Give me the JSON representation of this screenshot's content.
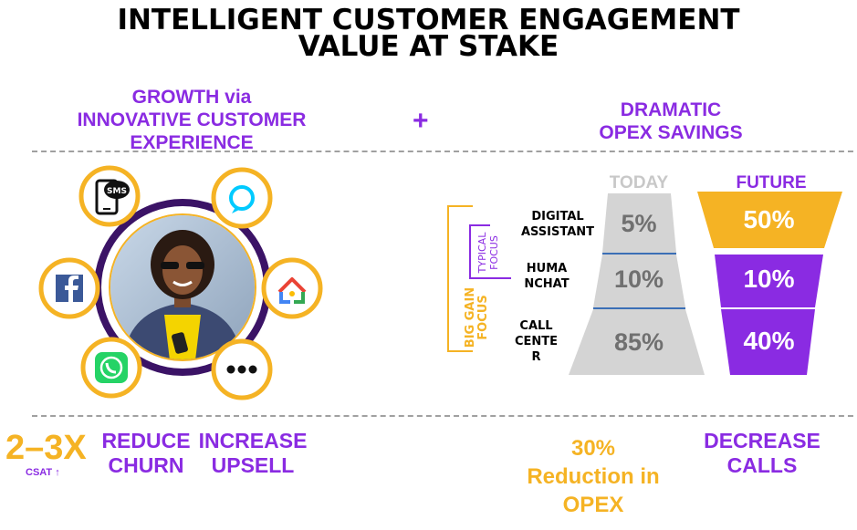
{
  "title": {
    "line1": "INTELLIGENT CUSTOMER ENGAGEMENT",
    "line2": "VALUE AT STAKE"
  },
  "growth": {
    "line1": "GROWTH via",
    "line2": "INNOVATIVE CUSTOMER",
    "line3": "EXPERIENCE"
  },
  "plus_sign": "+",
  "opex": {
    "line1": "DRAMATIC",
    "line2": "OPEX SAVINGS"
  },
  "channels": {
    "sms_label": "SMS",
    "icons": [
      "sms-phone-icon",
      "alexa-icon",
      "facebook-icon",
      "google-home-icon",
      "whatsapp-icon",
      "more-icon"
    ]
  },
  "funnel": {
    "today_header": "TODAY",
    "future_header": "FUTURE",
    "stages": [
      {
        "label_lines": [
          "DIGITAL",
          "ASSISTANT"
        ],
        "today": "5%",
        "future": "50%"
      },
      {
        "label_lines": [
          "HUMA",
          "NCHAT"
        ],
        "today": "10%",
        "future": "10%"
      },
      {
        "label_lines": [
          "CALL",
          "CENTE",
          "R"
        ],
        "today": "85%",
        "future": "40%"
      }
    ],
    "typical_focus": [
      "TYPICAL",
      "FOCUS"
    ],
    "big_gain_focus": [
      "BIG GAIN",
      "FOCUS"
    ]
  },
  "benefits": {
    "csat_value": "2–3X",
    "csat_label": "CSAT",
    "csat_arrow": "↑",
    "churn": [
      "REDUCE",
      "CHURN"
    ],
    "upsell": [
      "INCREASE",
      "UPSELL"
    ],
    "opex_reduction": [
      "30%",
      "Reduction in",
      "OPEX"
    ],
    "calls": [
      "DECREASE",
      "CALLS"
    ]
  },
  "colors": {
    "purple": "#8a2be2",
    "gold": "#f5b324",
    "gray": "#d4d4d4",
    "dark_purple": "#3b1366",
    "facebook": "#3b5998",
    "whatsapp": "#25d366",
    "alexa": "#00caff"
  }
}
